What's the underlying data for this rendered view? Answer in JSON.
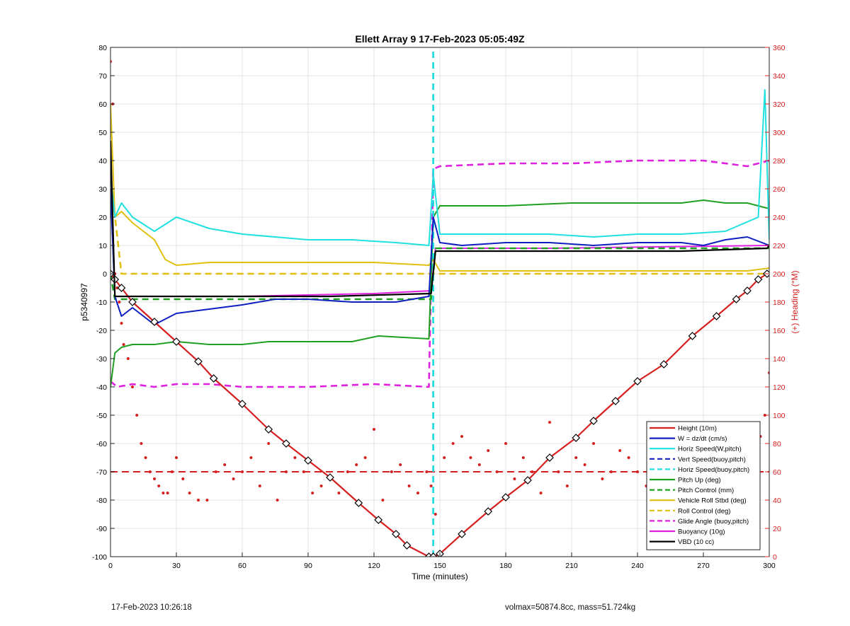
{
  "chart_data": {
    "type": "line",
    "title": "Ellett Array 9 17-Feb-2023 05:05:49Z",
    "xlabel": "Time (minutes)",
    "ylabel": "p5340997",
    "ylabel_right": "(+) Heading (°M)",
    "xlim": [
      0,
      300
    ],
    "ylim": [
      -100,
      80
    ],
    "ylim_right": [
      0,
      360
    ],
    "xticks": [
      0,
      30,
      60,
      90,
      120,
      150,
      180,
      210,
      240,
      270,
      300
    ],
    "yticks": [
      -100,
      -90,
      -80,
      -70,
      -60,
      -50,
      -40,
      -30,
      -20,
      -10,
      0,
      10,
      20,
      30,
      40,
      50,
      60,
      70,
      80
    ],
    "yticks_right": [
      0,
      20,
      40,
      60,
      80,
      100,
      120,
      140,
      160,
      180,
      200,
      220,
      240,
      260,
      280,
      300,
      320,
      340,
      360
    ],
    "grid": true,
    "legend_position": "bottom-right",
    "series": [
      {
        "name": "Height (10m)",
        "color": "#d62020",
        "style": "solid",
        "x": [
          0,
          2,
          5,
          10,
          20,
          30,
          40,
          47,
          60,
          72,
          80,
          90,
          100,
          113,
          122,
          130,
          135,
          145,
          147,
          150,
          160,
          172,
          180,
          190,
          200,
          212,
          220,
          230,
          240,
          252,
          265,
          276,
          285,
          290,
          295,
          299
        ],
        "y": [
          0,
          -2,
          -5,
          -10,
          -17,
          -24,
          -31,
          -37,
          -46,
          -55,
          -60,
          -66,
          -72,
          -81,
          -87,
          -92,
          -96,
          -100,
          -100,
          -99,
          -92,
          -84,
          -79,
          -73,
          -65,
          -58,
          -52,
          -45,
          -38,
          -32,
          -22,
          -15,
          -9,
          -6,
          -2,
          0
        ],
        "markers": "diamonds"
      },
      {
        "name": "W = dz/dt (cm/s)",
        "color": "#1020c0",
        "style": "solid",
        "x": [
          0,
          2,
          5,
          10,
          20,
          30,
          40,
          60,
          75,
          90,
          110,
          130,
          145,
          147,
          150,
          160,
          180,
          200,
          220,
          240,
          260,
          270,
          280,
          290,
          300
        ],
        "y": [
          30,
          -8,
          -15,
          -12,
          -18,
          -14,
          -13,
          -11,
          -9,
          -9,
          -10,
          -10,
          -8,
          20,
          11,
          10,
          11,
          11,
          10,
          11,
          11,
          10,
          12,
          13,
          10
        ]
      },
      {
        "name": "Horiz Speed(W,pitch)",
        "color": "#20e0e0",
        "style": "solid",
        "x": [
          0,
          2,
          5,
          10,
          20,
          30,
          45,
          60,
          75,
          90,
          110,
          130,
          145,
          147,
          150,
          160,
          180,
          200,
          220,
          240,
          260,
          280,
          295,
          298,
          300
        ],
        "y": [
          35,
          20,
          25,
          20,
          15,
          20,
          16,
          14,
          13,
          12,
          12,
          11,
          10,
          35,
          14,
          14,
          14,
          14,
          13,
          14,
          14,
          15,
          20,
          65,
          12
        ]
      },
      {
        "name": "Vert Speed(buoy,pitch)",
        "color": "#1020c0",
        "style": "dashed",
        "x": [
          147,
          147
        ],
        "y": [
          -100,
          80
        ]
      },
      {
        "name": "Horiz Speed(buoy,pitch)",
        "color": "#20e0e0",
        "style": "dashed",
        "x": [
          147,
          147
        ],
        "y": [
          -100,
          80
        ]
      },
      {
        "name": "Pitch Up (deg)",
        "color": "#20a020",
        "style": "solid",
        "x": [
          0,
          2,
          5,
          10,
          20,
          30,
          45,
          60,
          72,
          90,
          110,
          122,
          145,
          147,
          150,
          180,
          210,
          240,
          260,
          270,
          280,
          290,
          300
        ],
        "y": [
          -40,
          -28,
          -26,
          -25,
          -25,
          -24,
          -25,
          -25,
          -24,
          -24,
          -24,
          -22,
          -23,
          20,
          24,
          24,
          25,
          25,
          25,
          26,
          25,
          25,
          23
        ]
      },
      {
        "name": "Pitch Control (mm)",
        "color": "#20a020",
        "style": "dashed",
        "x": [
          0,
          2,
          146,
          148,
          300
        ],
        "y": [
          0,
          -9,
          -9,
          9,
          9
        ]
      },
      {
        "name": "Vehicle Roll Stbd (deg)",
        "color": "#e0c010",
        "style": "solid",
        "x": [
          0,
          2,
          5,
          10,
          15,
          20,
          25,
          30,
          45,
          60,
          90,
          120,
          145,
          147,
          150,
          180,
          210,
          240,
          270,
          290,
          300
        ],
        "y": [
          60,
          20,
          22,
          18,
          15,
          12,
          5,
          3,
          4,
          4,
          4,
          4,
          3,
          5,
          1,
          1,
          1,
          1,
          1,
          1,
          2
        ]
      },
      {
        "name": "Roll Control (deg)",
        "color": "#e0c010",
        "style": "dashed",
        "x": [
          0,
          5,
          146,
          148,
          300
        ],
        "y": [
          34,
          0,
          0,
          0,
          0
        ]
      },
      {
        "name": "Glide Angle (buoy,pitch)",
        "color": "#e020e0",
        "style": "dashed",
        "x": [
          0,
          3,
          10,
          20,
          30,
          45,
          60,
          90,
          120,
          145,
          147,
          150,
          180,
          210,
          240,
          270,
          290,
          300
        ],
        "y": [
          -38,
          -40,
          -39,
          -40,
          -39,
          -39,
          -40,
          -40,
          -39,
          -40,
          37,
          38,
          39,
          39,
          40,
          40,
          38,
          40
        ]
      },
      {
        "name": "Buoyancy (10g)",
        "color": "#e020e0",
        "style": "solid",
        "x": [
          2,
          60,
          120,
          146,
          148,
          200,
          300
        ],
        "y": [
          -8,
          -8,
          -7,
          -6,
          9,
          9,
          10
        ]
      },
      {
        "name": "VBD (10 cc)",
        "color": "#000000",
        "style": "solid",
        "x": [
          0,
          2,
          100,
          146,
          148,
          200,
          260,
          299,
          300
        ],
        "y": [
          47,
          -8,
          -8,
          -7,
          8,
          8,
          8,
          9,
          10
        ]
      }
    ],
    "heading": {
      "name": "Heading",
      "color": "#d62020",
      "style": "dots",
      "axis": "right",
      "mean": 60,
      "x": [
        0,
        1,
        2,
        3,
        4,
        5,
        6,
        8,
        10,
        12,
        14,
        16,
        18,
        20,
        22,
        24,
        26,
        28,
        30,
        33,
        36,
        40,
        44,
        48,
        52,
        56,
        60,
        64,
        68,
        72,
        76,
        80,
        84,
        88,
        92,
        96,
        100,
        104,
        108,
        112,
        116,
        120,
        124,
        128,
        132,
        136,
        140,
        144,
        146,
        148,
        152,
        156,
        160,
        164,
        168,
        172,
        176,
        180,
        184,
        188,
        192,
        196,
        200,
        204,
        208,
        212,
        216,
        220,
        224,
        228,
        232,
        236,
        240,
        244,
        248,
        252,
        256,
        260,
        264,
        268,
        272,
        276,
        280,
        284,
        288,
        292,
        296,
        298,
        300
      ],
      "y": [
        350,
        320,
        200,
        190,
        180,
        165,
        150,
        140,
        120,
        100,
        80,
        70,
        60,
        55,
        50,
        45,
        45,
        60,
        70,
        55,
        45,
        40,
        40,
        60,
        65,
        55,
        60,
        70,
        50,
        80,
        40,
        60,
        70,
        60,
        45,
        50,
        55,
        45,
        60,
        65,
        70,
        90,
        40,
        60,
        65,
        50,
        45,
        60,
        50,
        30,
        70,
        80,
        85,
        70,
        65,
        75,
        60,
        80,
        55,
        70,
        60,
        45,
        95,
        60,
        50,
        70,
        65,
        80,
        55,
        60,
        75,
        70,
        60,
        50,
        65,
        55,
        70,
        60,
        65,
        50,
        55,
        70,
        60,
        80,
        70,
        75,
        85,
        100,
        130
      ]
    }
  },
  "footer": {
    "timestamp": "17-Feb-2023 10:26:18",
    "info": "volmax=50874.8cc, mass=51.724kg"
  }
}
